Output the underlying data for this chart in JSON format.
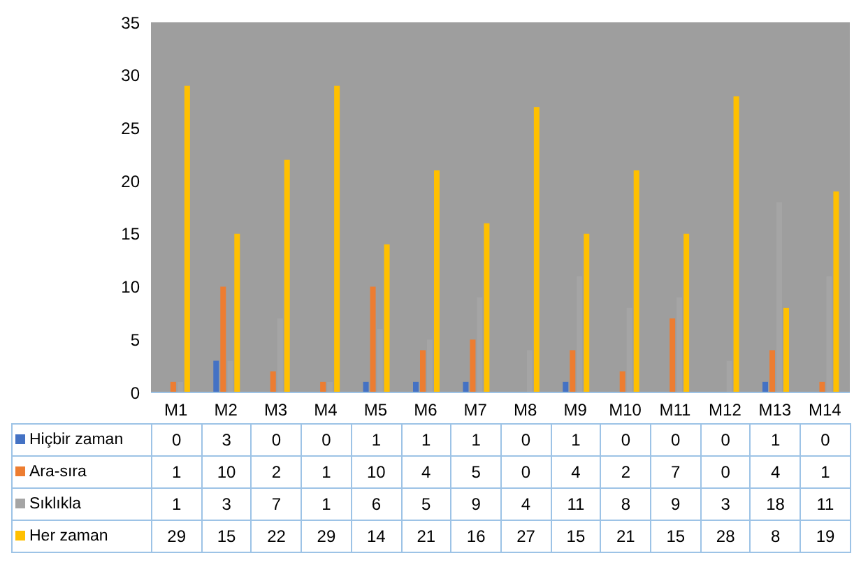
{
  "chart_data": {
    "type": "bar",
    "categories": [
      "M1",
      "M2",
      "M3",
      "M4",
      "M5",
      "M6",
      "M7",
      "M8",
      "M9",
      "M10",
      "M11",
      "M12",
      "M13",
      "M14"
    ],
    "series": [
      {
        "name": "Hiçbir zaman",
        "color": "#4472c4",
        "values": [
          0,
          3,
          0,
          0,
          1,
          1,
          1,
          0,
          1,
          0,
          0,
          0,
          1,
          0
        ]
      },
      {
        "name": "Ara-sıra",
        "color": "#ed7d31",
        "values": [
          1,
          10,
          2,
          1,
          10,
          4,
          5,
          0,
          4,
          2,
          7,
          0,
          4,
          1
        ]
      },
      {
        "name": "Sıklıkla",
        "color": "#a5a5a5",
        "values": [
          1,
          3,
          7,
          1,
          6,
          5,
          9,
          4,
          11,
          8,
          9,
          3,
          18,
          11
        ]
      },
      {
        "name": "Her zaman",
        "color": "#ffc000",
        "values": [
          29,
          15,
          22,
          29,
          14,
          21,
          16,
          27,
          15,
          21,
          15,
          28,
          8,
          19
        ]
      }
    ],
    "ylim": [
      0,
      35
    ],
    "yticks": [
      0,
      5,
      10,
      15,
      20,
      25,
      30,
      35
    ],
    "grid": false,
    "legend": "bottom",
    "data_labels": true
  }
}
